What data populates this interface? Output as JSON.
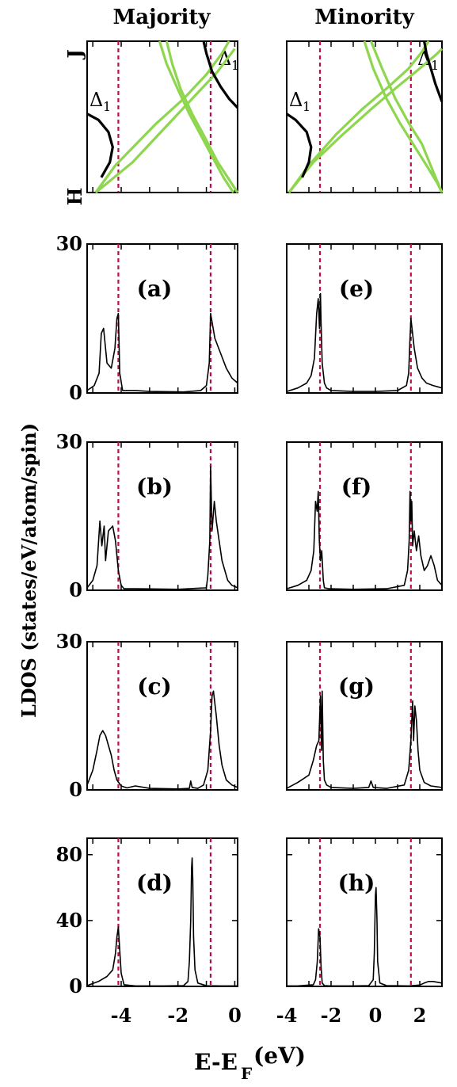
{
  "figure": {
    "col_titles": [
      "Majority",
      "Minority"
    ],
    "ylabel": "LDOS (states/eV/atom/spin)",
    "xlabel_main": "E-E",
    "xlabel_sub": "F",
    "xlabel_unit": "(eV)",
    "kpoint_top": "J",
    "kpoint_bottom": "H",
    "band_symbol": "Δ",
    "band_subscript": "1"
  },
  "chart_data": {
    "type": "line",
    "columns": [
      {
        "title": "Majority",
        "xlim": [
          -5.2,
          0.1
        ],
        "xticks": [
          -4,
          -2,
          0
        ],
        "marker_lines": [
          -4.1,
          -0.85
        ]
      },
      {
        "title": "Minority",
        "xlim": [
          -4.0,
          3.0
        ],
        "xticks": [
          -4,
          -2,
          0,
          2
        ],
        "marker_lines": [
          -2.5,
          1.6
        ]
      }
    ],
    "panels": [
      {
        "label": "(a)",
        "column": 0,
        "ylim": [
          0,
          30
        ],
        "yticks": [
          0,
          30
        ],
        "series": [
          {
            "x": [
              -5.2,
              -4.95,
              -4.78,
              -4.7,
              -4.62,
              -4.5,
              -4.35,
              -4.22,
              -4.15,
              -4.1,
              -4.05,
              -3.95,
              -3.5,
              -3.0,
              -1.8,
              -1.2,
              -1.0,
              -0.9,
              -0.85,
              -0.82,
              -0.7,
              -0.5,
              -0.3,
              -0.1,
              0.1
            ],
            "y": [
              0.5,
              1.5,
              4,
              12,
              13,
              6,
              5,
              9,
              15,
              16,
              4,
              0.5,
              0.5,
              0.3,
              0.2,
              0.5,
              1.5,
              6,
              16,
              15,
              11,
              8,
              5,
              3,
              2
            ]
          }
        ]
      },
      {
        "label": "(b)",
        "column": 0,
        "ylim": [
          0,
          30
        ],
        "yticks": [
          0,
          30
        ],
        "series": [
          {
            "x": [
              -5.2,
              -5.0,
              -4.85,
              -4.75,
              -4.68,
              -4.6,
              -4.55,
              -4.45,
              -4.3,
              -4.2,
              -4.1,
              -4.0,
              -3.9,
              -3.5,
              -2.0,
              -1.0,
              -0.95,
              -0.88,
              -0.85,
              -0.8,
              -0.72,
              -0.65,
              -0.55,
              -0.45,
              -0.35,
              -0.25,
              -0.1,
              0.1
            ],
            "y": [
              0.5,
              2,
              5,
              14,
              9,
              13,
              6,
              12,
              13,
              10,
              4,
              1,
              0.3,
              0.3,
              0.2,
              0.5,
              3,
              10,
              25,
              12,
              18,
              14,
              10,
              6,
              4,
              2,
              1,
              0.5
            ]
          }
        ]
      },
      {
        "label": "(c)",
        "column": 0,
        "ylim": [
          0,
          30
        ],
        "yticks": [
          0,
          30
        ],
        "series": [
          {
            "x": [
              -5.2,
              -5.0,
              -4.85,
              -4.75,
              -4.65,
              -4.55,
              -4.45,
              -4.35,
              -4.25,
              -4.15,
              -4.0,
              -3.8,
              -3.5,
              -3.0,
              -2.0,
              -1.6,
              -1.55,
              -1.5,
              -1.3,
              -1.1,
              -0.95,
              -0.85,
              -0.8,
              -0.75,
              -0.65,
              -0.55,
              -0.45,
              -0.3,
              -0.1,
              0.1
            ],
            "y": [
              1,
              4,
              8,
              11,
              12,
              11,
              9,
              7,
              4,
              2,
              0.8,
              0.4,
              0.8,
              0.3,
              0.2,
              0.3,
              1.8,
              0.5,
              0.3,
              1,
              4,
              12,
              19,
              20,
              15,
              9,
              5,
              2,
              1,
              0.5
            ]
          }
        ]
      },
      {
        "label": "(d)",
        "column": 0,
        "ylim": [
          0,
          90
        ],
        "yticks": [
          0,
          40,
          80
        ],
        "series": [
          {
            "x": [
              -5.2,
              -4.8,
              -4.5,
              -4.3,
              -4.2,
              -4.15,
              -4.1,
              -4.05,
              -4.0,
              -3.9,
              -3.5,
              -2.5,
              -1.8,
              -1.65,
              -1.6,
              -1.55,
              -1.52,
              -1.5,
              -1.48,
              -1.45,
              -1.4,
              -1.3,
              -1.0,
              -0.5,
              0.1
            ],
            "y": [
              0.5,
              3,
              6,
              10,
              20,
              30,
              36,
              22,
              8,
              1,
              0.3,
              0.3,
              0.5,
              3,
              15,
              40,
              72,
              78,
              65,
              30,
              10,
              2,
              0.4,
              0.3,
              0.3
            ]
          }
        ]
      },
      {
        "label": "(e)",
        "column": 1,
        "ylim": [
          0,
          30
        ],
        "yticks": [
          0,
          30
        ],
        "series": [
          {
            "x": [
              -4.0,
              -3.5,
              -3.1,
              -2.9,
              -2.75,
              -2.65,
              -2.58,
              -2.52,
              -2.48,
              -2.45,
              -2.4,
              -2.3,
              -2.2,
              -2.0,
              -1.0,
              0.0,
              1.0,
              1.4,
              1.5,
              1.55,
              1.6,
              1.65,
              1.75,
              1.9,
              2.1,
              2.3,
              2.6,
              3.0
            ],
            "y": [
              0.3,
              1,
              2,
              3.5,
              7,
              16,
              19,
              13,
              20,
              14,
              6,
              2,
              1,
              0.5,
              0.3,
              0.3,
              0.5,
              1.5,
              4,
              10,
              15,
              13,
              9,
              5,
              3,
              2,
              1.5,
              1
            ]
          }
        ]
      },
      {
        "label": "(f)",
        "column": 1,
        "ylim": [
          0,
          30
        ],
        "yticks": [
          0,
          30
        ],
        "series": [
          {
            "x": [
              -4.0,
              -3.5,
              -3.1,
              -2.9,
              -2.78,
              -2.7,
              -2.63,
              -2.58,
              -2.53,
              -2.48,
              -2.42,
              -2.35,
              -2.3,
              -2.1,
              -1.0,
              0.5,
              1.3,
              1.45,
              1.52,
              1.56,
              1.6,
              1.64,
              1.68,
              1.75,
              1.85,
              1.95,
              2.05,
              2.2,
              2.35,
              2.5,
              2.65,
              2.8,
              3.0
            ],
            "y": [
              0.3,
              1,
              2,
              4,
              8,
              18,
              16,
              20,
              10,
              6,
              8,
              2,
              0.5,
              0.3,
              0.2,
              0.3,
              1,
              4,
              10,
              20,
              14,
              18,
              9,
              12,
              8,
              11,
              7,
              4,
              5,
              7,
              5,
              2,
              1
            ]
          }
        ]
      },
      {
        "label": "(g)",
        "column": 1,
        "ylim": [
          0,
          30
        ],
        "yticks": [
          0,
          30
        ],
        "series": [
          {
            "x": [
              -4.0,
              -3.5,
              -3.0,
              -2.8,
              -2.65,
              -2.55,
              -2.48,
              -2.43,
              -2.4,
              -2.35,
              -2.3,
              -2.2,
              -2.0,
              -1.0,
              -0.3,
              -0.2,
              -0.1,
              0.5,
              1.3,
              1.5,
              1.6,
              1.68,
              1.72,
              1.78,
              1.85,
              1.92,
              2.0,
              2.2,
              2.5,
              3.0
            ],
            "y": [
              0.3,
              1.5,
              3,
              6,
              9,
              10,
              19,
              8,
              20,
              6,
              2,
              1,
              0.5,
              0.3,
              0.5,
              1.8,
              0.5,
              0.3,
              1,
              4,
              10,
              18,
              10,
              17,
              14,
              8,
              4,
              1.5,
              0.8,
              0.5
            ]
          }
        ]
      },
      {
        "label": "(h)",
        "column": 1,
        "ylim": [
          0,
          90
        ],
        "yticks": [
          0,
          40,
          80
        ],
        "series": [
          {
            "x": [
              -4.0,
              -3.5,
              -2.8,
              -2.7,
              -2.62,
              -2.56,
              -2.5,
              -2.45,
              -2.4,
              -2.3,
              -2.0,
              -1.0,
              -0.3,
              -0.1,
              -0.05,
              0.0,
              0.03,
              0.07,
              0.1,
              0.2,
              0.5,
              1.5,
              2.0,
              2.2,
              2.4,
              2.6,
              2.8,
              3.0
            ],
            "y": [
              0.3,
              0.3,
              1,
              4,
              15,
              35,
              30,
              12,
              2,
              0.5,
              0.3,
              0.3,
              0.5,
              4,
              20,
              55,
              60,
              40,
              15,
              2,
              0.5,
              0.3,
              0.8,
              2,
              3,
              3,
              2.5,
              2
            ]
          }
        ]
      }
    ],
    "band_panels": [
      {
        "column": 0,
        "green_series": [
          {
            "x": [
              -4.9,
              -3.6,
              -2.6,
              -1.6,
              -0.6,
              -0.2,
              0.0
            ],
            "y": [
              0.0,
              0.2,
              0.4,
              0.6,
              0.8,
              0.9,
              0.95
            ]
          },
          {
            "x": [
              -4.9,
              -4.2,
              -2.8,
              -1.8,
              -1.0,
              -0.45,
              -0.2
            ],
            "y": [
              0.0,
              0.18,
              0.45,
              0.62,
              0.78,
              0.92,
              1.0
            ]
          },
          {
            "x": [
              -2.4,
              -2.2,
              -1.9,
              -1.5,
              -1.1,
              -0.6,
              0.1
            ],
            "y": [
              1.0,
              0.85,
              0.68,
              0.52,
              0.38,
              0.2,
              0.0
            ]
          },
          {
            "x": [
              -2.65,
              -2.4,
              -2.0,
              -1.6,
              -1.2,
              -0.8,
              -0.4,
              -0.05
            ],
            "y": [
              1.0,
              0.85,
              0.68,
              0.52,
              0.38,
              0.24,
              0.1,
              0.0
            ]
          }
        ],
        "black_series": [
          {
            "x": [
              -5.2,
              -4.8,
              -4.45,
              -4.3,
              -4.4,
              -4.7
            ],
            "y": [
              0.52,
              0.48,
              0.4,
              0.3,
              0.2,
              0.1
            ]
          },
          {
            "x": [
              -1.1,
              -1.0,
              -0.8,
              -0.5,
              -0.2,
              0.1
            ],
            "y": [
              1.0,
              0.92,
              0.8,
              0.7,
              0.62,
              0.56
            ]
          }
        ]
      },
      {
        "column": 1,
        "green_series": [
          {
            "x": [
              -3.9,
              -2.8,
              -1.5,
              -0.2,
              1.0,
              2.0,
              2.8,
              3.0
            ],
            "y": [
              0.0,
              0.2,
              0.38,
              0.55,
              0.7,
              0.82,
              0.92,
              0.95
            ]
          },
          {
            "x": [
              -3.9,
              -3.0,
              -1.8,
              -0.6,
              0.6,
              1.5,
              2.1,
              2.4
            ],
            "y": [
              0.0,
              0.18,
              0.38,
              0.55,
              0.7,
              0.82,
              0.93,
              1.0
            ]
          },
          {
            "x": [
              -0.2,
              0.3,
              0.9,
              1.5,
              2.1,
              2.6,
              3.0
            ],
            "y": [
              1.0,
              0.82,
              0.62,
              0.46,
              0.32,
              0.14,
              0.0
            ]
          },
          {
            "x": [
              -0.5,
              -0.1,
              0.5,
              1.1,
              1.7,
              2.3,
              2.8,
              3.0
            ],
            "y": [
              1.0,
              0.82,
              0.62,
              0.46,
              0.32,
              0.18,
              0.06,
              0.0
            ]
          }
        ],
        "black_series": [
          {
            "x": [
              -4.0,
              -3.6,
              -3.1,
              -2.9,
              -3.0,
              -3.3
            ],
            "y": [
              0.52,
              0.48,
              0.4,
              0.3,
              0.2,
              0.1
            ]
          },
          {
            "x": [
              2.2,
              2.3,
              2.5,
              2.7,
              2.9,
              3.0
            ],
            "y": [
              1.0,
              0.92,
              0.82,
              0.72,
              0.64,
              0.6
            ]
          }
        ]
      }
    ],
    "colors": {
      "ldos": "#000000",
      "marker": "#b8104a",
      "band_green": "#8ed64e",
      "band_black": "#000000"
    }
  }
}
